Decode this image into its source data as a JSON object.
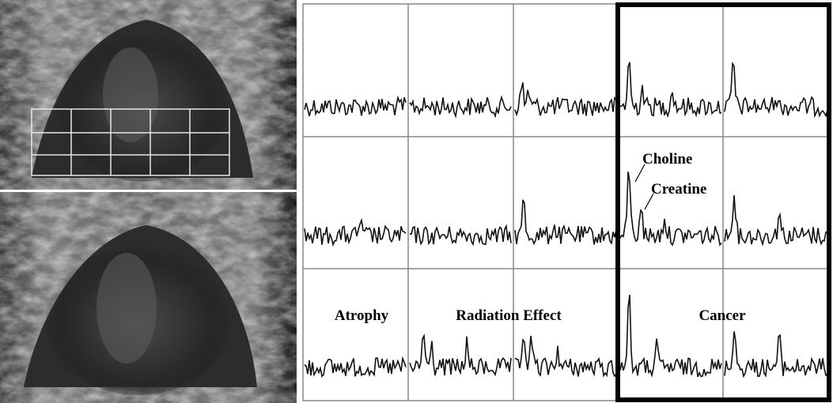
{
  "annotations": {
    "choline": "Choline",
    "creatine": "Creatine"
  },
  "region_labels": [
    "Atrophy",
    "Radiation Effect",
    "Cancer"
  ]
}
